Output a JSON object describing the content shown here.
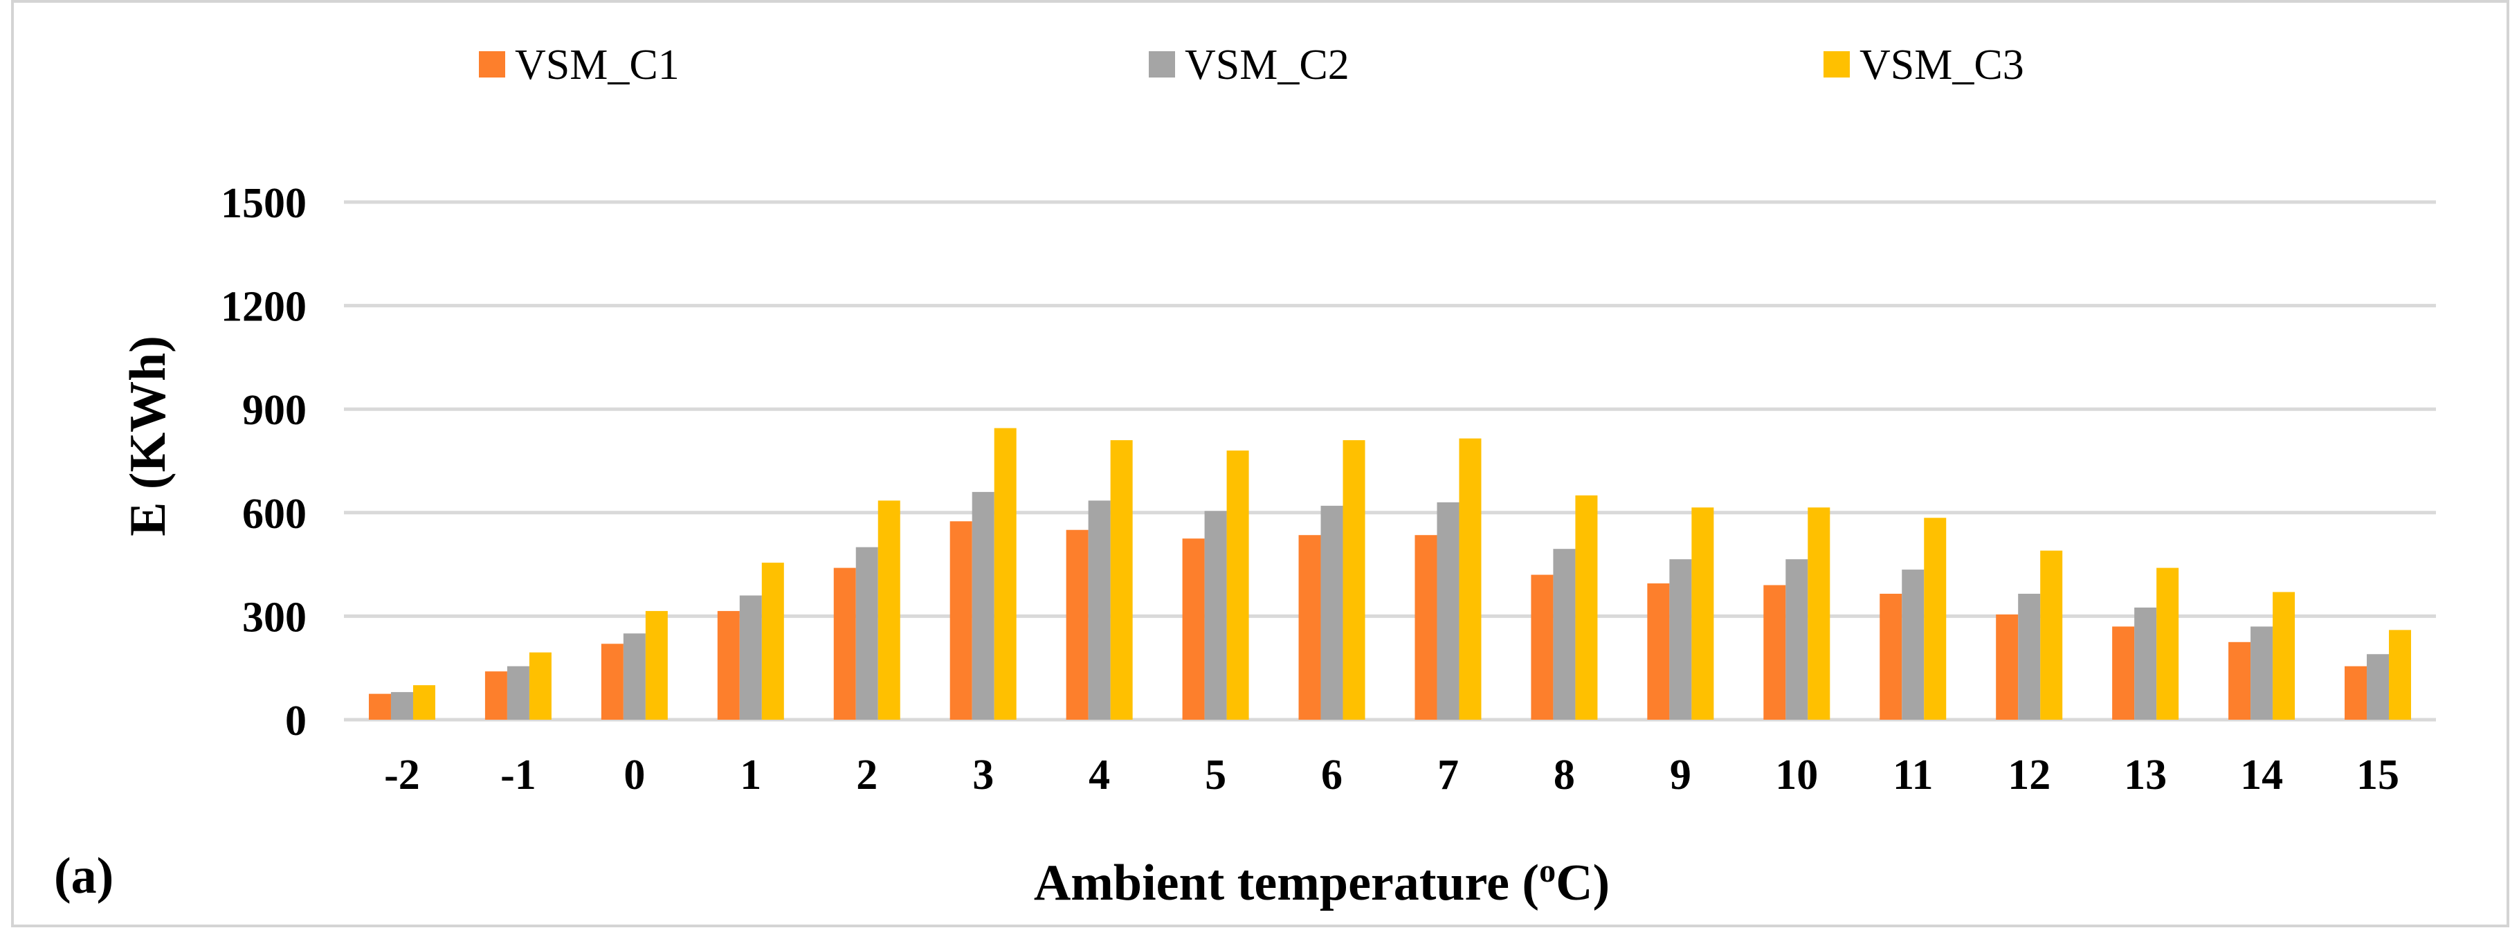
{
  "chart_data": {
    "type": "bar",
    "panel_label": "(a)",
    "title": "",
    "xlabel": "Ambient temperature (",
    "xlabel_sup": "o",
    "xlabel_suffix": "C)",
    "ylabel": "E (KWh)",
    "ylim": [
      0,
      1500
    ],
    "yticks": [
      0,
      300,
      600,
      900,
      1200,
      1500
    ],
    "grid": true,
    "legend_position": "top",
    "categories": [
      "-2",
      "-1",
      "0",
      "1",
      "2",
      "3",
      "4",
      "5",
      "6",
      "7",
      "8",
      "9",
      "10",
      "11",
      "12",
      "13",
      "14",
      "15"
    ],
    "series": [
      {
        "name": "VSM_C1",
        "color": "#fd7f2c",
        "values": [
          75,
          140,
          220,
          315,
          440,
          575,
          550,
          525,
          535,
          535,
          420,
          395,
          390,
          365,
          305,
          270,
          225,
          155
        ]
      },
      {
        "name": "VSM_C2",
        "color": "#a5a5a5",
        "values": [
          80,
          155,
          250,
          360,
          500,
          660,
          635,
          605,
          620,
          630,
          495,
          465,
          465,
          435,
          365,
          325,
          270,
          190
        ]
      },
      {
        "name": "VSM_C3",
        "color": "#ffc000",
        "values": [
          100,
          195,
          315,
          455,
          635,
          845,
          810,
          780,
          810,
          815,
          650,
          615,
          615,
          585,
          490,
          440,
          370,
          260
        ]
      }
    ],
    "gridline_color": "#d9d9d9"
  }
}
